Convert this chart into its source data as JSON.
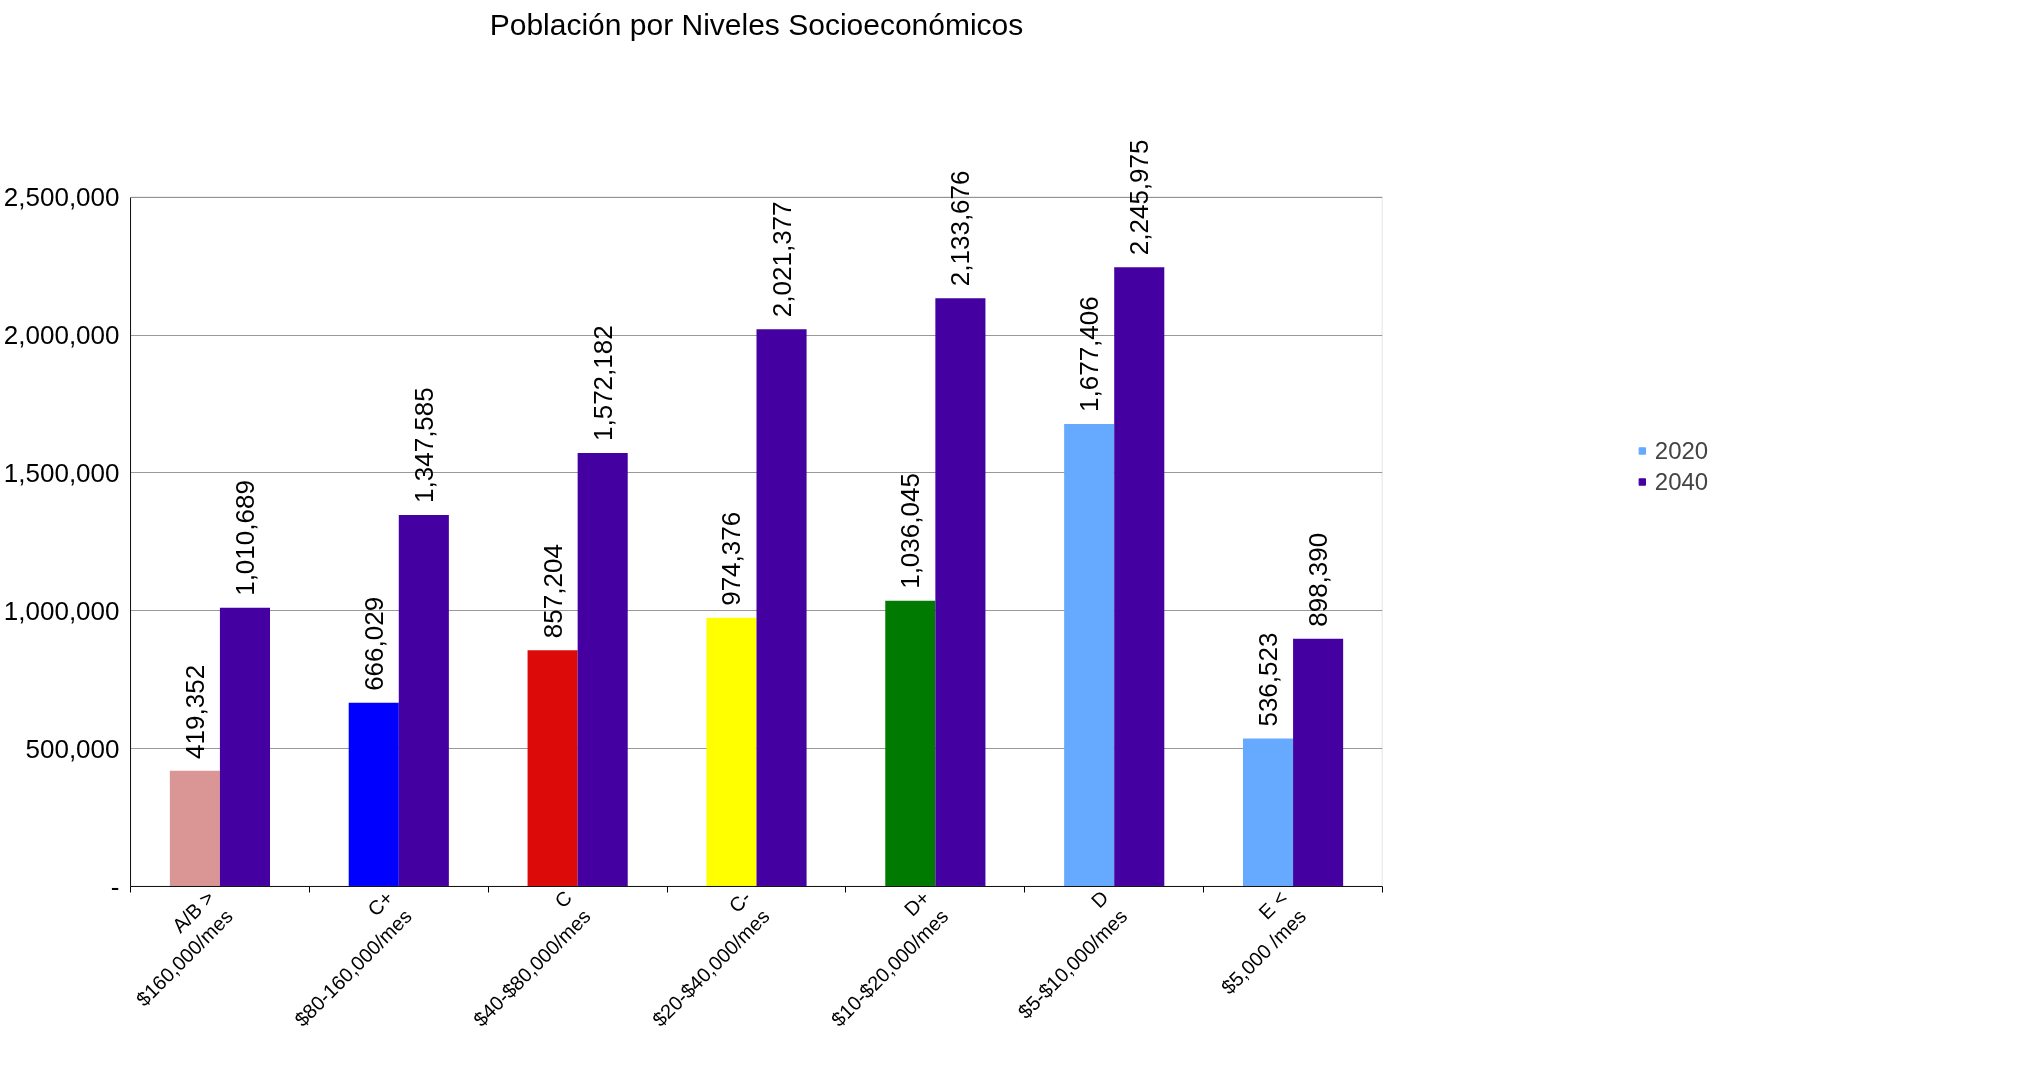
{
  "chart_data": {
    "type": "bar",
    "title": "Población por Niveles Socioeconómicos",
    "categories": [
      "A/B >\n$160,000/mes",
      "C+\n$80-160,000/mes",
      "C\n$40-$80,000/mes",
      "C-\n$20-$40,000/mes",
      "D+\n$10-$20,000/mes",
      "D\n$5-$10,000/mes",
      "E <\n$5,000 /mes"
    ],
    "series": [
      {
        "name": "2020",
        "color": "#66aaff",
        "colors": [
          "#d99694",
          "#0000ff",
          "#dd0a0a",
          "#ffff00",
          "#007a00",
          "#66aaff",
          "#66aaff"
        ],
        "values": [
          419352,
          666029,
          857204,
          974376,
          1036045,
          1677406,
          536523
        ],
        "value_labels": [
          "419,352",
          "666,029",
          "857,204",
          "974,376",
          "1,036,045",
          "1,677,406",
          "536,523"
        ]
      },
      {
        "name": "2040",
        "color": "#4400a0",
        "values": [
          1010689,
          1347585,
          1572182,
          2021377,
          2133676,
          2245975,
          898390
        ],
        "value_labels": [
          "1,010,689",
          "1,347,585",
          "1,572,182",
          "2,021,377",
          "2,133,676",
          "2,245,975",
          "898,390"
        ]
      }
    ],
    "ylim": [
      0,
      2500000
    ],
    "yticks": [
      {
        "value": 0,
        "label": "-"
      },
      {
        "value": 500000,
        "label": "500,000"
      },
      {
        "value": 1000000,
        "label": "1,000,000"
      },
      {
        "value": 1500000,
        "label": "1,500,000"
      },
      {
        "value": 2000000,
        "label": "2,000,000"
      },
      {
        "value": 2500000,
        "label": "2,500,000"
      }
    ],
    "grid": "y",
    "legend": "right"
  }
}
